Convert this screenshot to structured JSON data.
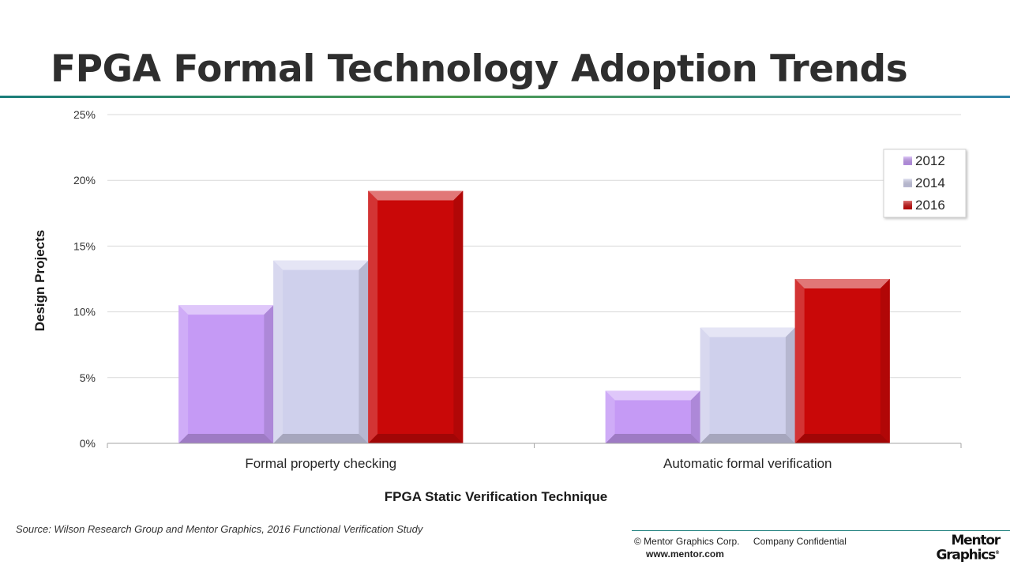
{
  "slide": {
    "title": "FPGA Formal Technology Adoption Trends",
    "source": "Source:  Wilson Research Group and Mentor Graphics, 2016 Functional Verification Study",
    "footer": {
      "copyright": "© Mentor Graphics Corp.",
      "confidential": "Company Confidential",
      "website": "www.mentor.com"
    },
    "logo": {
      "line1": "Mentor",
      "line2": "Graphics",
      "mark": "®"
    }
  },
  "chart_data": {
    "type": "bar",
    "title": "",
    "xlabel": "FPGA Static Verification Technique",
    "ylabel": "Design Projects",
    "categories": [
      "Formal property checking",
      "Automatic formal verification"
    ],
    "series": [
      {
        "name": "2012",
        "values": [
          10.5,
          4.0
        ],
        "color": "#c59af5"
      },
      {
        "name": "2014",
        "values": [
          13.9,
          8.8
        ],
        "color": "#cfd0ec"
      },
      {
        "name": "2016",
        "values": [
          19.2,
          12.5
        ],
        "color": "#c90808"
      }
    ],
    "ylim": [
      0,
      25
    ],
    "yticks": [
      0,
      5,
      10,
      15,
      20,
      25
    ],
    "ytick_labels": [
      "0%",
      "5%",
      "10%",
      "15%",
      "20%",
      "25%"
    ],
    "grid": true,
    "legend_position": "top-right"
  }
}
